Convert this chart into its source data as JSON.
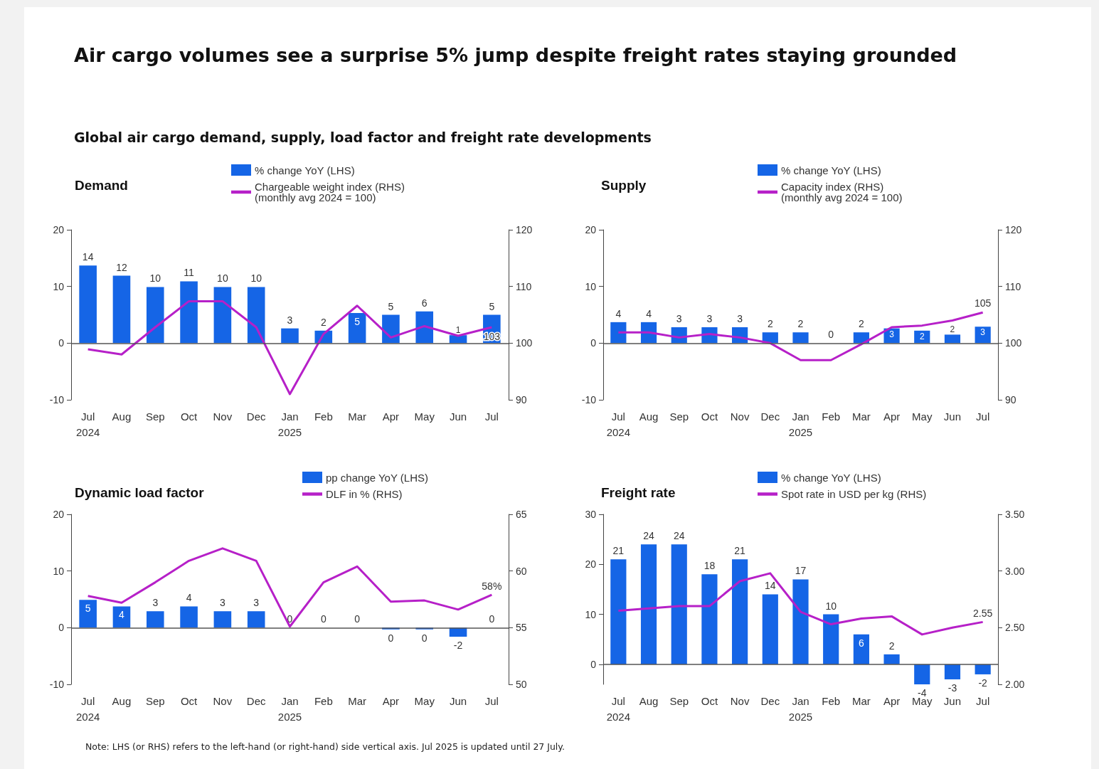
{
  "chart_data": [
    {
      "type": "other",
      "title": "Air cargo volumes see a surprise 5% jump despite freight rates staying grounded",
      "subtitle": "Global air cargo demand, supply, load factor and freight rate developments",
      "annotations": [
        "Note: LHS (or RHS) refers to the left-hand (or right-hand) side vertical axis. Jul 2025 is updated until 27 July."
      ]
    },
    {
      "type": "bar",
      "title": "Demand",
      "categories": [
        "Jul\n2024",
        "Aug",
        "Sep",
        "Oct",
        "Nov",
        "Dec",
        "Jan\n2025",
        "Feb",
        "Mar",
        "Apr",
        "May",
        "Jun",
        "Jul"
      ],
      "ylim": [
        -10,
        20
      ],
      "yticks": [
        -10,
        0,
        10,
        20
      ],
      "y2lim": [
        90,
        120
      ],
      "y2ticks": [
        90,
        100,
        110,
        120
      ],
      "ref_lines": [
        {
          "axis": "y",
          "value": 0
        }
      ],
      "grid": false,
      "legend": "top",
      "marker": "none",
      "series": [
        {
          "name": "% change YoY (LHS)",
          "type": "bar",
          "color": "#1565e6",
          "values": [
            13.7,
            11.9,
            9.9,
            10.9,
            9.9,
            9.9,
            2.6,
            2.2,
            5.3,
            5.0,
            5.6,
            1.4,
            5.0
          ],
          "value_labels": [
            "14",
            "12",
            "10",
            "11",
            "10",
            "10",
            "3",
            "2",
            "5",
            "5",
            "6",
            "1",
            "5"
          ]
        },
        {
          "name": "Chargeable weight index (RHS)\n(monthly avg 2024 = 100)",
          "type": "line",
          "axis": "y2",
          "color": "#b620c8",
          "values": [
            98.9,
            98.0,
            102.8,
            107.4,
            107.4,
            102.8,
            91.0,
            101.6,
            106.6,
            101.0,
            103.0,
            101.3,
            102.8
          ],
          "value_labels": [
            null,
            null,
            null,
            null,
            null,
            null,
            null,
            null,
            null,
            null,
            null,
            null,
            "103"
          ]
        }
      ]
    },
    {
      "type": "bar",
      "title": "Supply",
      "categories": [
        "Jul\n2024",
        "Aug",
        "Sep",
        "Oct",
        "Nov",
        "Dec",
        "Jan\n2025",
        "Feb",
        "Mar",
        "Apr",
        "May",
        "Jun",
        "Jul"
      ],
      "ylim": [
        -10,
        20
      ],
      "yticks": [
        -10,
        0,
        10,
        20
      ],
      "y2lim": [
        90,
        120
      ],
      "y2ticks": [
        90,
        100,
        110,
        120
      ],
      "ref_lines": [
        {
          "axis": "y",
          "value": 0
        }
      ],
      "grid": false,
      "legend": "top",
      "marker": "none",
      "series": [
        {
          "name": "% change YoY (LHS)",
          "type": "bar",
          "color": "#1565e6",
          "values": [
            3.7,
            3.7,
            2.8,
            2.8,
            2.8,
            1.9,
            1.9,
            0,
            1.9,
            2.6,
            2.2,
            1.5,
            2.9
          ],
          "value_labels": [
            "4",
            "4",
            "3",
            "3",
            "3",
            "2",
            "2",
            "0",
            "2",
            "3",
            "2",
            "2",
            "3"
          ]
        },
        {
          "name": "Capacity index (RHS)\n(monthly avg 2024 = 100)",
          "type": "line",
          "axis": "y2",
          "color": "#b620c8",
          "values": [
            101.9,
            101.9,
            101.0,
            101.6,
            101.0,
            100.0,
            97.0,
            97.0,
            99.8,
            102.8,
            103.1,
            104.0,
            105.4
          ],
          "value_labels": [
            null,
            null,
            null,
            null,
            null,
            null,
            null,
            null,
            null,
            null,
            null,
            null,
            "105"
          ]
        }
      ]
    },
    {
      "type": "bar",
      "title": "Dynamic load factor",
      "categories": [
        "Jul\n2024",
        "Aug",
        "Sep",
        "Oct",
        "Nov",
        "Dec",
        "Jan\n2025",
        "Feb",
        "Mar",
        "Apr",
        "May",
        "Jun",
        "Jul"
      ],
      "ylim": [
        -10,
        20
      ],
      "yticks": [
        -10,
        0,
        10,
        20
      ],
      "y2lim": [
        50,
        65
      ],
      "y2ticks": [
        50,
        55,
        60,
        65
      ],
      "ref_lines": [
        {
          "axis": "y",
          "value": 0
        }
      ],
      "grid": false,
      "legend": "top",
      "marker": "none",
      "series": [
        {
          "name": "pp change YoY (LHS)",
          "type": "bar",
          "color": "#1565e6",
          "values": [
            4.9,
            3.75,
            2.9,
            3.75,
            2.9,
            2.9,
            0,
            0,
            0,
            -0.3,
            -0.3,
            -1.6,
            0
          ],
          "value_labels": [
            "5",
            "4",
            "3",
            "4",
            "3",
            "3",
            "0",
            "0",
            "0",
            "0",
            "0",
            "-2",
            "0"
          ]
        },
        {
          "name": "DLF in % (RHS)",
          "type": "line",
          "axis": "y2",
          "color": "#b620c8",
          "values": [
            57.8,
            57.2,
            59.0,
            60.9,
            62.0,
            60.9,
            55.1,
            59.0,
            60.4,
            57.3,
            57.4,
            56.6,
            57.9
          ],
          "value_labels": [
            null,
            null,
            null,
            null,
            null,
            null,
            null,
            null,
            null,
            null,
            null,
            null,
            "58%"
          ]
        }
      ]
    },
    {
      "type": "bar",
      "title": "Freight rate",
      "categories": [
        "Jul\n2024",
        "Aug",
        "Sep",
        "Oct",
        "Nov",
        "Dec",
        "Jan\n2025",
        "Feb",
        "Mar",
        "Apr",
        "May",
        "Jun",
        "Jul"
      ],
      "ylim": [
        -4,
        30
      ],
      "yticks": [
        0,
        10,
        20,
        30
      ],
      "y2lim": [
        2,
        3.5
      ],
      "y2ticks": [
        {
          "value": 2,
          "label": "2.00"
        },
        {
          "value": 2.5,
          "label": "2.50"
        },
        {
          "value": 3,
          "label": "3.00"
        },
        {
          "value": 3.5,
          "label": "3.50"
        }
      ],
      "ref_lines": [
        {
          "axis": "y",
          "value": 0
        }
      ],
      "grid": false,
      "legend": "top",
      "marker": "none",
      "series": [
        {
          "name": "% change YoY (LHS)",
          "type": "bar",
          "color": "#1565e6",
          "values": [
            21,
            24,
            24,
            18,
            21,
            14,
            17,
            10,
            6,
            2,
            -4,
            -3,
            -2
          ],
          "data_labels": true
        },
        {
          "name": "Spot rate in USD per kg (RHS)",
          "type": "line",
          "axis": "y2",
          "color": "#b620c8",
          "values": [
            2.65,
            2.67,
            2.69,
            2.69,
            2.91,
            2.98,
            2.64,
            2.53,
            2.58,
            2.6,
            2.44,
            2.5,
            2.55
          ],
          "value_labels": [
            null,
            null,
            null,
            null,
            null,
            null,
            null,
            null,
            null,
            null,
            null,
            null,
            "2.55"
          ]
        }
      ]
    }
  ]
}
